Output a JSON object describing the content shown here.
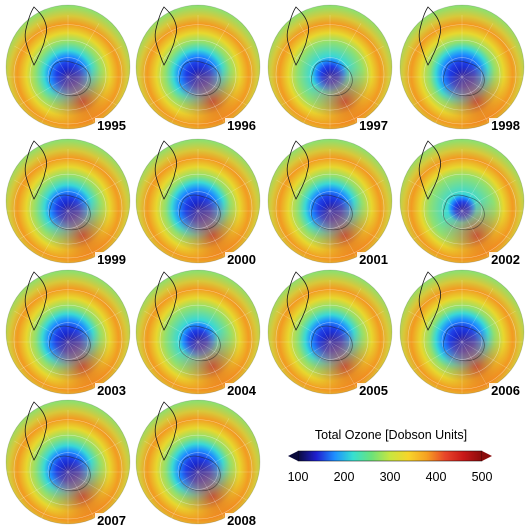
{
  "panels": [
    {
      "year": "1995",
      "hole": 0.92
    },
    {
      "year": "1996",
      "hole": 0.95
    },
    {
      "year": "1997",
      "hole": 0.7
    },
    {
      "year": "1998",
      "hole": 1.0
    },
    {
      "year": "1999",
      "hole": 0.9
    },
    {
      "year": "2000",
      "hole": 1.0
    },
    {
      "year": "2001",
      "hole": 0.95
    },
    {
      "year": "2002",
      "hole": 0.55
    },
    {
      "year": "2003",
      "hole": 0.98
    },
    {
      "year": "2004",
      "hole": 0.75
    },
    {
      "year": "2005",
      "hole": 0.95
    },
    {
      "year": "2006",
      "hole": 1.0
    },
    {
      "year": "2007",
      "hole": 0.92
    },
    {
      "year": "2008",
      "hole": 0.98
    }
  ],
  "legend": {
    "title": "Total Ozone [Dobson Units]",
    "ticks": [
      "100",
      "200",
      "300",
      "400",
      "500"
    ],
    "min": 100,
    "max": 500,
    "colors": [
      "#0a0a3c",
      "#1f1fd0",
      "#1e90ff",
      "#36e0d0",
      "#6be27a",
      "#c8e640",
      "#f7d52a",
      "#f5a022",
      "#e8452a",
      "#c81818",
      "#8a0c0c"
    ]
  }
}
